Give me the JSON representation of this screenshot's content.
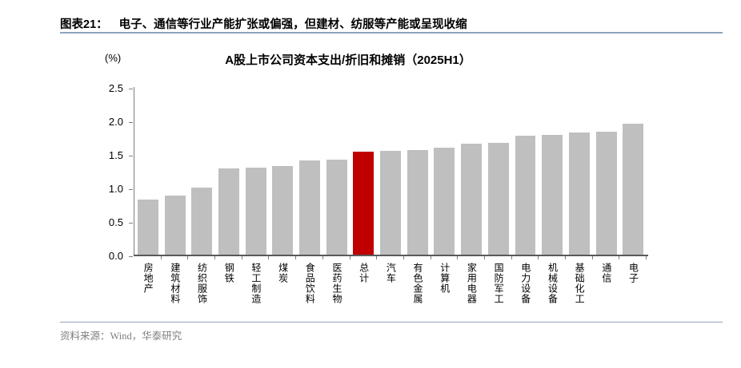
{
  "header": {
    "tag": "图表21：",
    "title": "电子、通信等行业产能扩张或偏强，但建材、纺服等产能或呈现收缩"
  },
  "chart_data": {
    "type": "bar",
    "title": "A股上市公司资本支出/折旧和摊销（2025H1）",
    "unit_label": "(%)",
    "categories": [
      "房地产",
      "建筑材料",
      "纺织服饰",
      "钢铁",
      "轻工制造",
      "煤炭",
      "食品饮料",
      "医药生物",
      "总计",
      "汽车",
      "有色金属",
      "计算机",
      "家用电器",
      "国防军工",
      "电力设备",
      "机械设备",
      "基础化工",
      "通信",
      "电子"
    ],
    "values": [
      0.84,
      0.91,
      1.02,
      1.31,
      1.32,
      1.35,
      1.43,
      1.44,
      1.56,
      1.57,
      1.58,
      1.62,
      1.68,
      1.69,
      1.8,
      1.81,
      1.84,
      1.86,
      1.98
    ],
    "highlight_category": "总计",
    "bar_color": "#BFBFBF",
    "highlight_color": "#C00000",
    "ylim": [
      0,
      2.5
    ],
    "yticks": [
      0.0,
      0.5,
      1.0,
      1.5,
      2.0,
      2.5
    ],
    "ytick_labels": [
      "0.0",
      "0.5",
      "1.0",
      "1.5",
      "2.0",
      "2.5"
    ],
    "grid": false,
    "legend": null,
    "xlabel": "",
    "ylabel": "(%)"
  },
  "footer": {
    "text": "资料来源：Wind，华泰研究"
  }
}
